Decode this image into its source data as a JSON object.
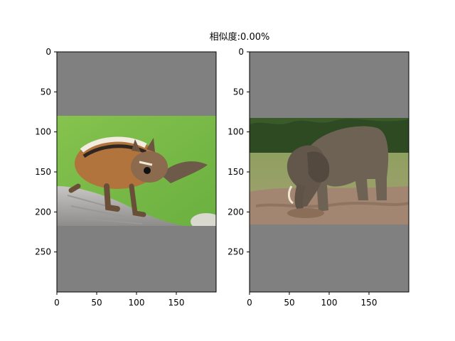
{
  "figure": {
    "title": "相似度:0.00%",
    "background_color": "#ffffff",
    "panel_fill_color": "#808080"
  },
  "panels": [
    {
      "name": "left-panel",
      "subject": "chipmunk-photo",
      "x_ticks": [
        "0",
        "50",
        "100",
        "150"
      ],
      "y_ticks": [
        "0",
        "50",
        "100",
        "150",
        "200",
        "250"
      ],
      "x_range": [
        0,
        200
      ],
      "y_range": [
        0,
        300
      ],
      "photo_rows": [
        80,
        218
      ],
      "colors": {
        "sky": "#7fbf4a",
        "rock": "#b4b2b0",
        "fur": "#b0743c"
      }
    },
    {
      "name": "right-panel",
      "subject": "elephant-photo",
      "x_ticks": [
        "0",
        "50",
        "100",
        "150"
      ],
      "y_ticks": [
        "0",
        "50",
        "100",
        "150",
        "200",
        "250"
      ],
      "x_range": [
        0,
        200
      ],
      "y_range": [
        0,
        300
      ],
      "photo_rows": [
        82,
        215
      ],
      "colors": {
        "trees": "#3a5a2a",
        "grass": "#8a9a5a",
        "mud": "#a38672",
        "elephant": "#6e6254"
      }
    }
  ]
}
